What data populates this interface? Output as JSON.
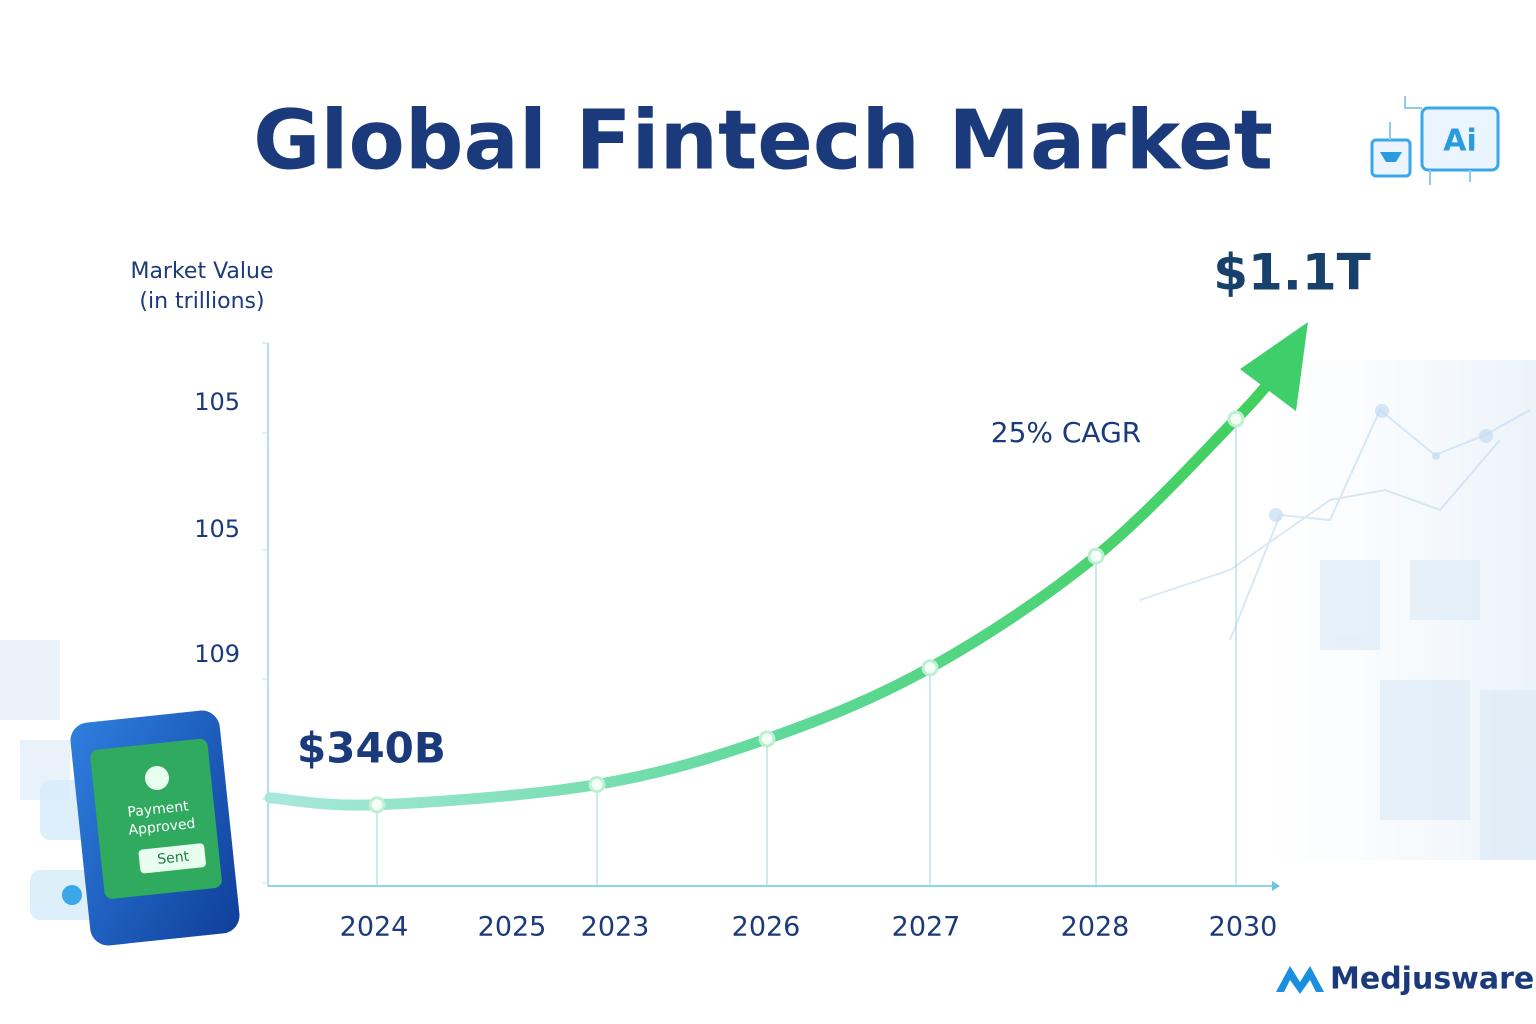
{
  "chart_data": {
    "type": "line",
    "title": "Global Fintech Market",
    "y_axis_label": [
      "Market Value",
      "(in trillions)"
    ],
    "y_axis_texts": [
      "105",
      "105",
      "109"
    ],
    "categories": [
      "2024",
      "2025",
      "2023",
      "2026",
      "2027",
      "2028",
      "2030"
    ],
    "values": [
      0.34,
      null,
      0.38,
      0.47,
      0.61,
      0.83,
      1.1
    ],
    "value_labels": [
      "$340B",
      null,
      null,
      null,
      null,
      null,
      "$1.1T"
    ],
    "annotation": "25% CAGR",
    "color": "#3fcf6a",
    "ylim": [
      0.18,
      1.25
    ],
    "phone": {
      "status": [
        "Payment",
        "Approved"
      ],
      "button": "Sent"
    },
    "brand": "Medjusware"
  }
}
